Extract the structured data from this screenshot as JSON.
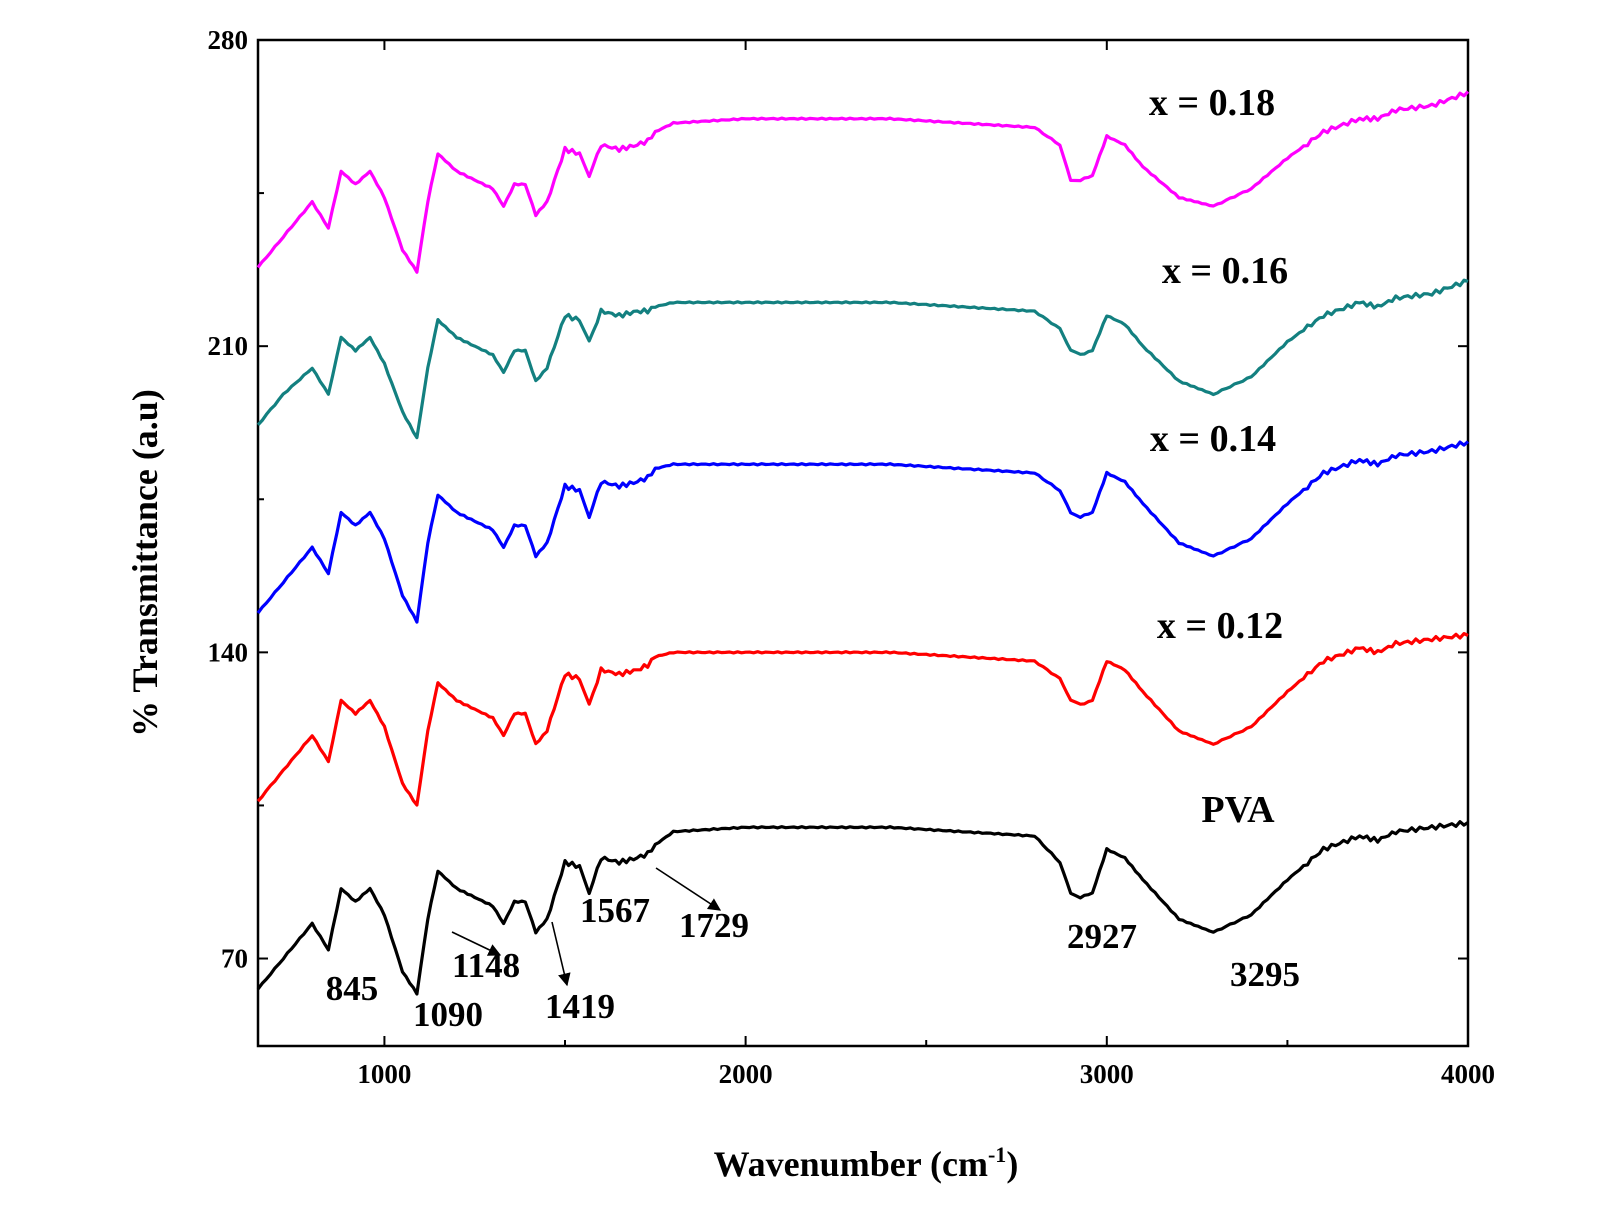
{
  "chart_data": {
    "type": "line",
    "title": "",
    "xlabel": "Wavenumber (cm",
    "xlabel_sup": "-1",
    "xlabel_close": ")",
    "ylabel": "% Transmittance (a.u)",
    "xlim": [
      650,
      4000
    ],
    "ylim": [
      50,
      280
    ],
    "xticks": [
      1000,
      2000,
      3000,
      4000
    ],
    "yticks": [
      70,
      140,
      210,
      280
    ],
    "grid": false,
    "series": [
      {
        "name": "PVA",
        "color": "#000000",
        "x": [
          650,
          720,
          800,
          845,
          880,
          920,
          960,
          1000,
          1050,
          1090,
          1120,
          1148,
          1200,
          1250,
          1300,
          1330,
          1360,
          1390,
          1419,
          1450,
          1500,
          1540,
          1567,
          1600,
          1650,
          1700,
          1729,
          1750,
          1800,
          2000,
          2200,
          2400,
          2600,
          2800,
          2870,
          2900,
          2927,
          2960,
          3000,
          3050,
          3100,
          3200,
          3295,
          3400,
          3500,
          3600,
          3700,
          3750,
          3800,
          3900,
          4000
        ],
        "y": [
          63,
          70,
          78,
          72,
          86,
          83,
          86,
          80,
          67,
          62,
          79,
          90,
          86,
          84,
          82,
          78,
          83,
          83,
          76,
          79,
          92,
          91,
          85,
          93,
          92,
          93,
          94,
          96,
          99,
          100,
          100,
          100,
          99,
          98,
          92,
          85,
          84,
          85,
          95,
          93,
          88,
          79,
          76,
          80,
          88,
          95,
          98,
          97,
          99,
          100,
          101
        ]
      },
      {
        "name": "x = 0.12",
        "color": "#ff0000",
        "x": [
          650,
          720,
          800,
          845,
          880,
          920,
          960,
          1000,
          1050,
          1090,
          1120,
          1148,
          1200,
          1250,
          1300,
          1330,
          1360,
          1390,
          1419,
          1450,
          1500,
          1540,
          1567,
          1600,
          1650,
          1700,
          1729,
          1750,
          1800,
          2000,
          2200,
          2400,
          2600,
          2800,
          2870,
          2900,
          2927,
          2960,
          3000,
          3050,
          3100,
          3200,
          3295,
          3400,
          3500,
          3600,
          3700,
          3750,
          3800,
          3900,
          4000
        ],
        "y": [
          106,
          113,
          121,
          115,
          129,
          126,
          129,
          123,
          110,
          105,
          122,
          133,
          129,
          127,
          125,
          121,
          126,
          126,
          119,
          122,
          135,
          134,
          128,
          136,
          135,
          136,
          137,
          139,
          140,
          140,
          140,
          140,
          139,
          138,
          134,
          129,
          128,
          129,
          138,
          136,
          131,
          122,
          119,
          123,
          131,
          138,
          141,
          140,
          142,
          143,
          144
        ]
      },
      {
        "name": "x = 0.14",
        "color": "#0000ff",
        "x": [
          650,
          720,
          800,
          845,
          880,
          920,
          960,
          1000,
          1050,
          1090,
          1120,
          1148,
          1200,
          1250,
          1300,
          1330,
          1360,
          1390,
          1419,
          1450,
          1500,
          1540,
          1567,
          1600,
          1650,
          1700,
          1729,
          1750,
          1800,
          2000,
          2200,
          2400,
          2600,
          2800,
          2870,
          2900,
          2927,
          2960,
          3000,
          3050,
          3100,
          3200,
          3295,
          3400,
          3500,
          3600,
          3700,
          3750,
          3800,
          3900,
          4000
        ],
        "y": [
          149,
          156,
          164,
          158,
          172,
          169,
          172,
          166,
          153,
          147,
          165,
          176,
          172,
          170,
          168,
          164,
          169,
          169,
          162,
          165,
          178,
          177,
          171,
          179,
          178,
          179,
          180,
          182,
          183,
          183,
          183,
          183,
          182,
          181,
          177,
          172,
          171,
          172,
          181,
          179,
          174,
          165,
          162,
          166,
          174,
          181,
          184,
          183,
          185,
          186,
          188
        ]
      },
      {
        "name": "x = 0.16",
        "color": "#138080",
        "x": [
          650,
          720,
          800,
          845,
          880,
          920,
          960,
          1000,
          1050,
          1090,
          1120,
          1148,
          1200,
          1250,
          1300,
          1330,
          1360,
          1390,
          1419,
          1450,
          1500,
          1540,
          1567,
          1600,
          1650,
          1700,
          1729,
          1750,
          1800,
          2000,
          2200,
          2400,
          2600,
          2800,
          2870,
          2900,
          2927,
          2960,
          3000,
          3050,
          3100,
          3200,
          3295,
          3400,
          3500,
          3600,
          3700,
          3750,
          3800,
          3900,
          4000
        ],
        "y": [
          192,
          199,
          205,
          199,
          212,
          209,
          212,
          206,
          195,
          189,
          205,
          216,
          212,
          210,
          208,
          204,
          209,
          209,
          202,
          205,
          217,
          216,
          211,
          218,
          217,
          218,
          218,
          219,
          220,
          220,
          220,
          220,
          219,
          218,
          214,
          209,
          208,
          209,
          217,
          215,
          210,
          202,
          199,
          203,
          211,
          217,
          220,
          219,
          221,
          222,
          225
        ]
      },
      {
        "name": "x = 0.18",
        "color": "#ff00ff",
        "x": [
          650,
          720,
          800,
          845,
          880,
          920,
          960,
          1000,
          1050,
          1090,
          1120,
          1148,
          1200,
          1250,
          1300,
          1330,
          1360,
          1390,
          1419,
          1450,
          1500,
          1540,
          1567,
          1600,
          1650,
          1700,
          1729,
          1750,
          1800,
          2000,
          2200,
          2400,
          2600,
          2800,
          2870,
          2900,
          2927,
          2960,
          3000,
          3050,
          3100,
          3200,
          3295,
          3400,
          3500,
          3600,
          3700,
          3750,
          3800,
          3900,
          4000
        ],
        "y": [
          228,
          235,
          243,
          237,
          250,
          247,
          250,
          244,
          232,
          227,
          243,
          254,
          250,
          248,
          246,
          242,
          247,
          247,
          240,
          243,
          255,
          254,
          249,
          256,
          255,
          256,
          257,
          259,
          261,
          262,
          262,
          262,
          261,
          260,
          256,
          248,
          248,
          249,
          258,
          256,
          251,
          244,
          242,
          246,
          253,
          259,
          262,
          262,
          264,
          265,
          268
        ]
      }
    ],
    "annotations": [
      {
        "text": "845"
      },
      {
        "text": "1090"
      },
      {
        "text": "1148"
      },
      {
        "text": "1419"
      },
      {
        "text": "1567"
      },
      {
        "text": "1729"
      },
      {
        "text": "2927"
      },
      {
        "text": "3295"
      }
    ]
  }
}
